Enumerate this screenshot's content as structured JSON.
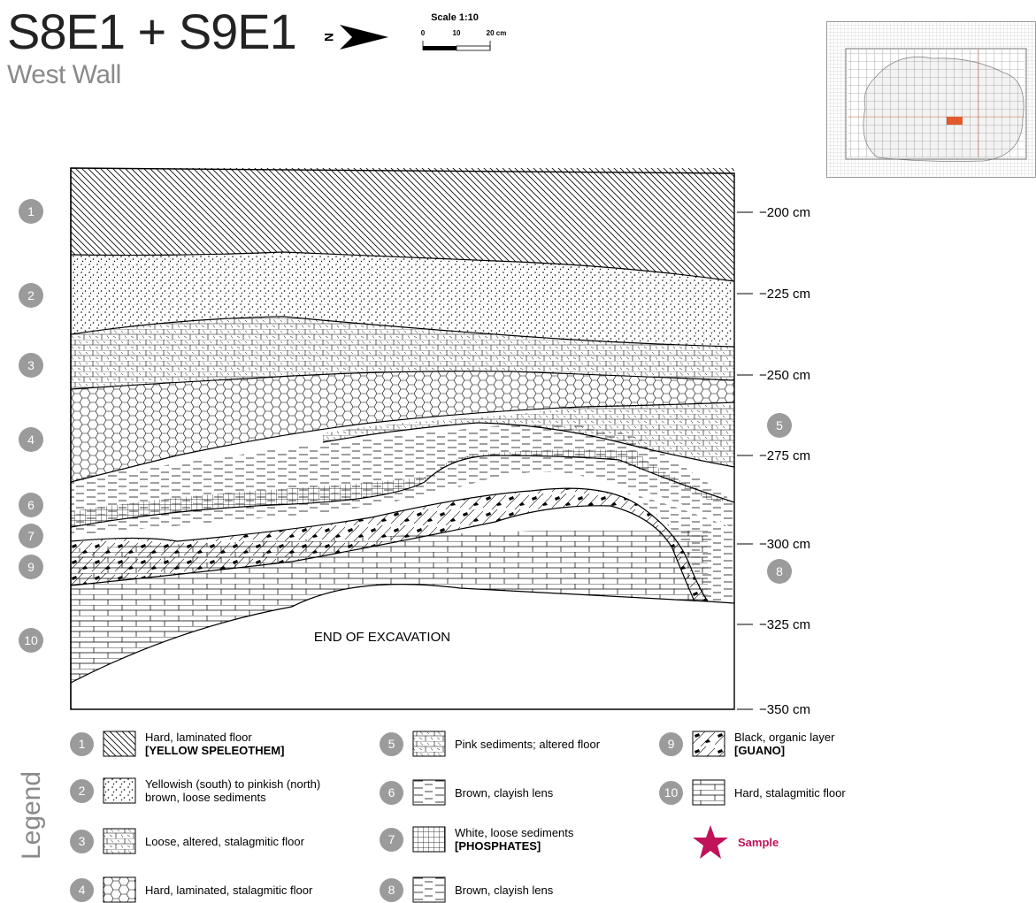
{
  "header": {
    "title": "S8E1 + S9E1",
    "subtitle": "West Wall",
    "north_label": "N",
    "scale": {
      "title": "Scale 1:10",
      "ticks": [
        "0",
        "10",
        "20 cm"
      ]
    }
  },
  "profile": {
    "depth_ticks": [
      "−200 cm",
      "−225 cm",
      "−250 cm",
      "−275 cm",
      "−300 cm",
      "−325 cm",
      "−350 cm"
    ],
    "layer_markers": [
      "1",
      "2",
      "3",
      "4",
      "5",
      "6",
      "7",
      "9",
      "10",
      "8"
    ],
    "end_label": "END OF EXCAVATION"
  },
  "legend": {
    "title": "Legend",
    "items": [
      {
        "num": "1",
        "text": "Hard, laminated floor",
        "bold": "[YELLOW SPELEOTHEM]",
        "pattern": "diagonal-hatch"
      },
      {
        "num": "2",
        "text": "Yellowish (south) to pinkish (north)",
        "text2": "brown, loose sediments",
        "pattern": "dots"
      },
      {
        "num": "3",
        "text": "Loose, altered, stalagmitic floor",
        "pattern": "brick-dashes"
      },
      {
        "num": "4",
        "text": "Hard, laminated, stalagmitic floor",
        "pattern": "hexagons"
      },
      {
        "num": "5",
        "text": "Pink sediments; altered floor",
        "pattern": "brick-dashes"
      },
      {
        "num": "6",
        "text": "Brown, clayish lens",
        "pattern": "dashed-lines"
      },
      {
        "num": "7",
        "text": "White, loose sediments",
        "bold": "[PHOSPHATES]",
        "pattern": "crosshatch-grid"
      },
      {
        "num": "8",
        "text": "Brown, clayish lens",
        "pattern": "dashed-lines"
      },
      {
        "num": "9",
        "text": "Black, organic layer",
        "bold": "[GUANO]",
        "pattern": "diagonal-with-blobs"
      },
      {
        "num": "10",
        "text": "Hard, stalagmitic floor",
        "pattern": "bricks"
      }
    ],
    "sample": {
      "text": "Sample",
      "icon": "star-icon",
      "color": "#c0135a"
    }
  },
  "colors": {
    "marker": "#9b9b9b",
    "highlight": "#e05a2a",
    "sample": "#c0135a"
  }
}
